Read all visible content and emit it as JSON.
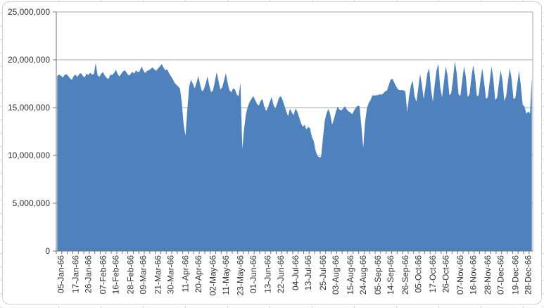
{
  "chart": {
    "frame_border_color": "#d0d0d0",
    "background_color": "#ffffff"
  },
  "chart_data": {
    "type": "area",
    "title": "",
    "legend": "none",
    "grid": "horizontal",
    "value_unit": 1000000,
    "colors": {
      "area_fill": "#4f81bd",
      "gridline": "#a9a9a9",
      "axis": "#707070",
      "label": "#303030"
    },
    "y_axis": {
      "min": 0,
      "max": 25000000,
      "tick_interval": 5000000,
      "tick_values": [
        0,
        5000000,
        10000000,
        15000000,
        20000000,
        25000000
      ],
      "tick_labels": [
        "0",
        "5,000,000",
        "10,000,000",
        "15,000,000",
        "20,000,000",
        "25,000,000"
      ]
    },
    "x_axis": {
      "label_rotation_deg": -90,
      "points_total": 260,
      "tick_labels": [
        "05-Jan-66",
        "17-Jan-66",
        "26-Jan-66",
        "07-Feb-66",
        "16-Feb-66",
        "28-Feb-66",
        "09-Mar-66",
        "21-Mar-66",
        "30-Mar-66",
        "11-Apr-66",
        "20-Apr-66",
        "02-May-66",
        "11-May-66",
        "23-May-66",
        "01-Jun-66",
        "13-Jun-66",
        "22-Jun-66",
        "04-Jul-66",
        "13-Jul-66",
        "25-Jul-66",
        "03-Aug-66",
        "15-Aug-66",
        "24-Aug-66",
        "05-Sep-66",
        "14-Sep-66",
        "26-Sep-66",
        "05-Oct-66",
        "17-Oct-66",
        "26-Oct-66",
        "07-Nov-66",
        "16-Nov-66",
        "28-Nov-66",
        "07-Dec-66",
        "19-Dec-66",
        "28-Dec-66"
      ],
      "tick_label_indices": [
        2,
        10,
        17,
        25,
        32,
        40,
        47,
        55,
        62,
        70,
        77,
        85,
        92,
        100,
        107,
        115,
        122,
        130,
        137,
        145,
        152,
        160,
        167,
        175,
        182,
        190,
        197,
        205,
        212,
        220,
        227,
        235,
        242,
        250,
        257
      ]
    },
    "series": [
      {
        "name": "",
        "values_in_millions": [
          18.3,
          18.45,
          18.35,
          18.15,
          18.4,
          18.5,
          18.3,
          18.05,
          17.9,
          18.3,
          18.45,
          18.2,
          18.5,
          18.6,
          18.3,
          18.15,
          18.55,
          18.4,
          18.65,
          18.45,
          18.5,
          19.65,
          18.4,
          18.2,
          18.55,
          18.7,
          18.35,
          18.1,
          18.0,
          18.45,
          18.4,
          18.6,
          18.95,
          18.5,
          18.25,
          18.55,
          18.8,
          18.9,
          18.6,
          18.35,
          18.5,
          18.75,
          18.55,
          18.9,
          18.7,
          18.8,
          19.3,
          18.9,
          18.6,
          18.85,
          18.9,
          19.05,
          19.2,
          19.0,
          18.85,
          19.1,
          19.3,
          19.55,
          19.2,
          18.9,
          19.0,
          18.6,
          18.3,
          18.0,
          17.6,
          17.4,
          17.2,
          17.0,
          15.5,
          13.2,
          12.05,
          14.8,
          17.2,
          17.9,
          17.5,
          17.0,
          17.6,
          18.3,
          17.4,
          16.7,
          16.9,
          17.5,
          18.25,
          17.3,
          16.6,
          16.8,
          17.7,
          18.7,
          17.8,
          16.9,
          17.1,
          17.8,
          18.6,
          17.6,
          16.8,
          16.6,
          17.0,
          16.9,
          16.35,
          16.2,
          17.6,
          10.7,
          12.8,
          14.3,
          15.1,
          15.6,
          15.9,
          16.2,
          15.8,
          15.4,
          15.2,
          15.7,
          15.9,
          15.1,
          14.65,
          15.0,
          15.6,
          16.1,
          15.3,
          14.9,
          15.4,
          16.0,
          16.2,
          15.8,
          15.2,
          14.6,
          14.1,
          14.9,
          14.5,
          14.2,
          14.9,
          14.6,
          14.0,
          13.4,
          13.0,
          13.2,
          12.7,
          13.0,
          12.8,
          11.9,
          11.5,
          10.5,
          9.95,
          9.8,
          9.85,
          11.8,
          13.6,
          14.4,
          14.85,
          14.3,
          13.2,
          13.8,
          14.5,
          15.1,
          14.8,
          14.7,
          14.9,
          15.15,
          14.8,
          14.6,
          14.5,
          14.3,
          14.7,
          15.0,
          15.2,
          15.15,
          13.0,
          10.8,
          13.5,
          14.9,
          15.5,
          15.8,
          16.3,
          16.25,
          16.3,
          16.3,
          16.4,
          16.35,
          16.5,
          16.7,
          16.8,
          17.4,
          17.95,
          18.0,
          17.6,
          17.2,
          16.9,
          16.8,
          16.85,
          16.8,
          16.7,
          14.5,
          16.2,
          17.3,
          17.8,
          16.2,
          15.6,
          17.0,
          18.5,
          17.4,
          15.9,
          17.2,
          18.6,
          19.1,
          16.9,
          15.6,
          17.4,
          18.9,
          19.6,
          17.1,
          16.1,
          17.6,
          19.3,
          18.4,
          16.3,
          16.5,
          18.0,
          19.85,
          18.6,
          16.4,
          16.2,
          17.8,
          19.3,
          18.2,
          16.1,
          16.4,
          18.1,
          19.45,
          18.3,
          16.2,
          16.3,
          17.9,
          19.1,
          17.6,
          15.9,
          16.1,
          17.7,
          19.3,
          18.0,
          15.8,
          16.0,
          17.5,
          18.9,
          17.8,
          15.7,
          16.2,
          17.8,
          19.1,
          17.9,
          15.9,
          16.0,
          17.4,
          18.85,
          17.3,
          15.3,
          15.1,
          14.35,
          14.6,
          14.4,
          18.15
        ]
      }
    ]
  }
}
